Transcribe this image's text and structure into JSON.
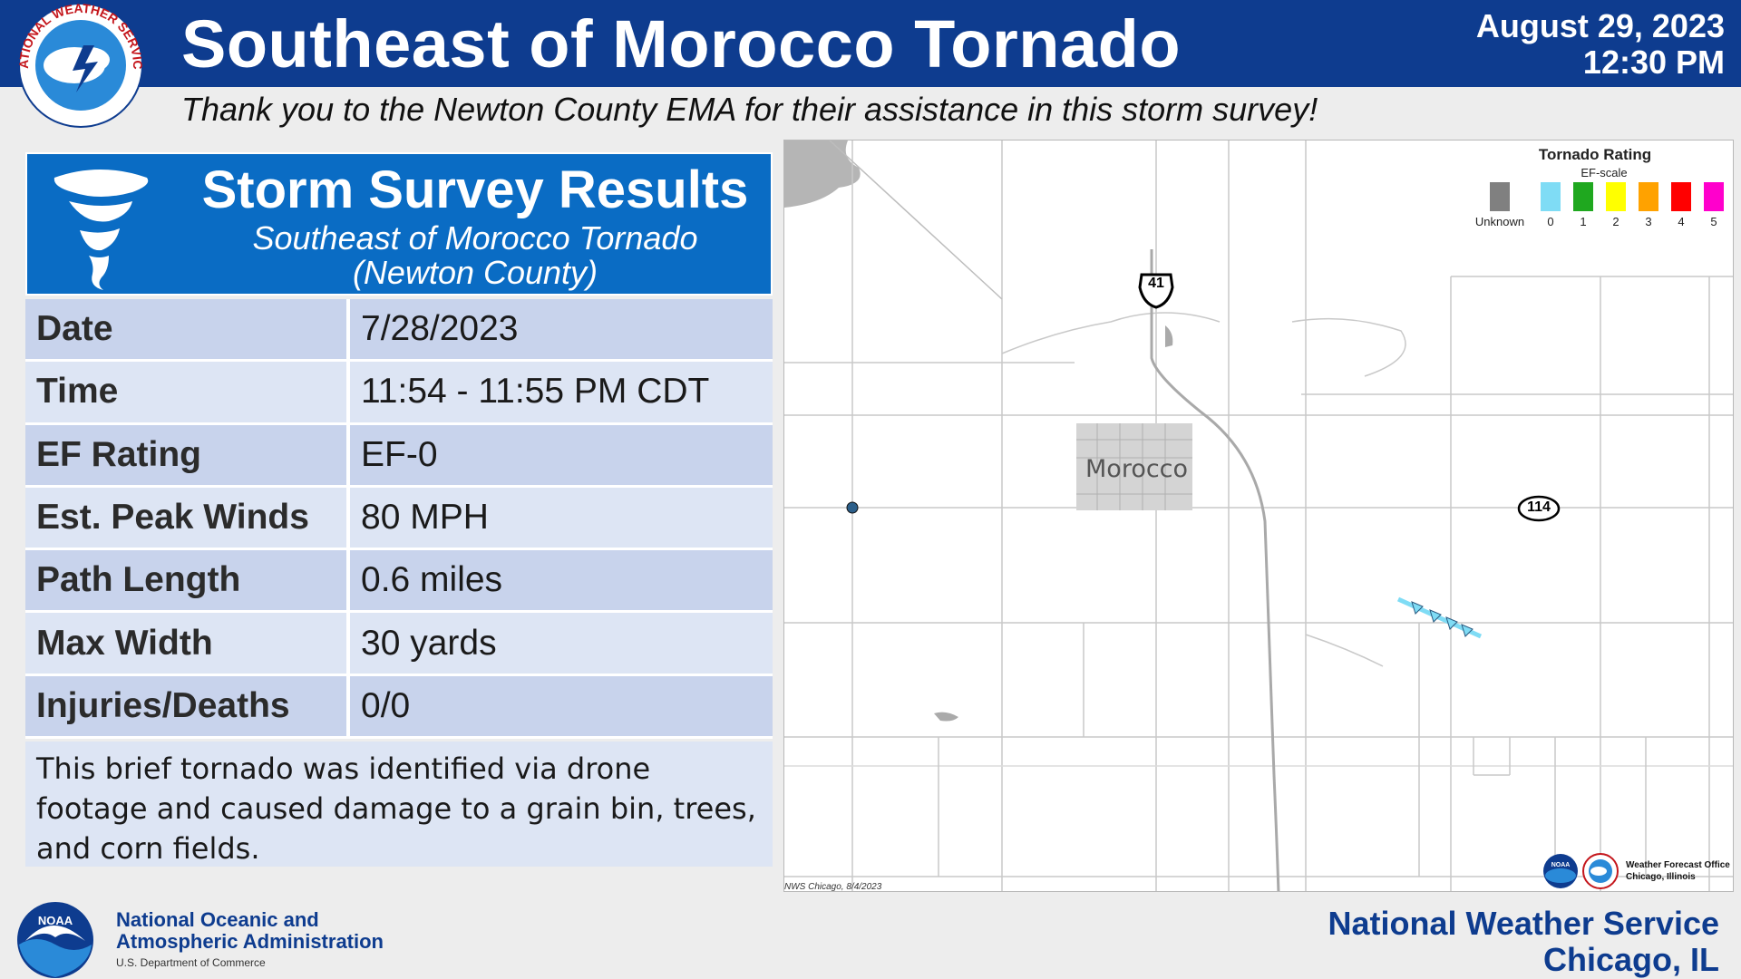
{
  "header": {
    "title": "Southeast of Morocco Tornado",
    "date": "August 29, 2023",
    "time": "12:30 PM",
    "subheader": "Thank you to the Newton County EMA for their assistance in this storm survey!",
    "logo_text": "NATIONAL WEATHER SERVICE"
  },
  "survey": {
    "title": "Storm Survey Results",
    "subtitle_line1": "Southeast of Morocco Tornado",
    "subtitle_line2": "(Newton County)",
    "rows": [
      {
        "label": "Date",
        "value": "7/28/2023"
      },
      {
        "label": "Time",
        "value": "11:54 - 11:55 PM CDT"
      },
      {
        "label": "EF Rating",
        "value": "EF-0"
      },
      {
        "label": "Est. Peak Winds",
        "value": "80 MPH"
      },
      {
        "label": "Path Length",
        "value": "0.6 miles"
      },
      {
        "label": "Max Width",
        "value": "30 yards"
      },
      {
        "label": "Injuries/Deaths",
        "value": "0/0"
      }
    ],
    "summary": "This brief tornado was identified via drone footage and caused damage to a grain bin, trees, and corn fields."
  },
  "map": {
    "town_label": "Morocco",
    "route_us": "41",
    "route_state": "114",
    "legend_title": "Tornado Rating",
    "legend_subtitle": "EF-scale",
    "legend": [
      {
        "label": "Unknown",
        "color": "#808080"
      },
      {
        "label": "0",
        "color": "#7fdcf5"
      },
      {
        "label": "1",
        "color": "#1fa81f"
      },
      {
        "label": "2",
        "color": "#ffff00"
      },
      {
        "label": "3",
        "color": "#ffa200"
      },
      {
        "label": "4",
        "color": "#ff0000"
      },
      {
        "label": "5",
        "color": "#ff00cc"
      }
    ],
    "credit": "NWS Chicago, 8/4/2023",
    "wfo_line1": "Weather Forecast Office",
    "wfo_line2": "Chicago, Illinois",
    "noaa_badge": "NOAA"
  },
  "footer": {
    "noaa_line1": "National Oceanic and",
    "noaa_line2": "Atmospheric Administration",
    "noaa_line3": "U.S. Department of Commerce",
    "noaa_badge": "NOAA",
    "nws": "National Weather Service",
    "city": "Chicago, IL"
  },
  "colors": {
    "header_blue": "#0e3c8f",
    "banner_blue": "#0a6cc4",
    "row_dark": "#c8d3ec",
    "row_light": "#dde5f4",
    "ef0_track": "#7fdcf5"
  }
}
